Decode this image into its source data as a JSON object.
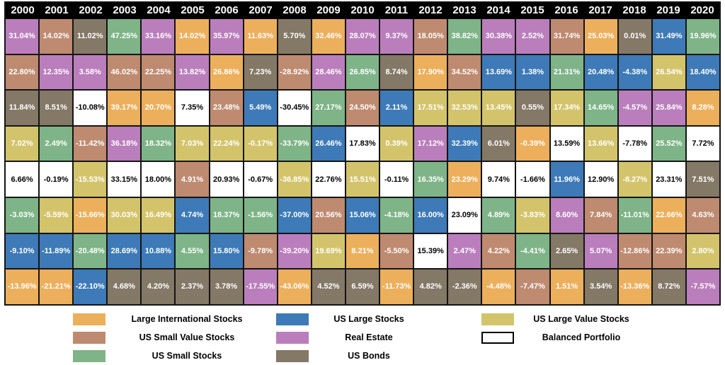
{
  "chart_data": {
    "type": "table",
    "years": [
      "2000",
      "2001",
      "2002",
      "2003",
      "2004",
      "2005",
      "2006",
      "2007",
      "2008",
      "2009",
      "2010",
      "2011",
      "2012",
      "2013",
      "2014",
      "2015",
      "2016",
      "2017",
      "2018",
      "2019",
      "2020"
    ],
    "asset_classes": {
      "LIS": {
        "label": "Large International Stocks",
        "color": "#ECAF5C",
        "text_color": "#FFFFFF"
      },
      "USV": {
        "label": "US Small Value Stocks",
        "color": "#BE8A70",
        "text_color": "#FFFFFF"
      },
      "USS": {
        "label": "US Small Stocks",
        "color": "#7EB487",
        "text_color": "#FFFFFF"
      },
      "UL": {
        "label": "US Large Stocks",
        "color": "#3D7AB7",
        "text_color": "#FFFFFF"
      },
      "RE": {
        "label": "Real Estate",
        "color": "#BA7EBC",
        "text_color": "#FFFFFF"
      },
      "UB": {
        "label": "US Bonds",
        "color": "#847866",
        "text_color": "#FFFFFF"
      },
      "ULV": {
        "label": "US Large Value Stocks",
        "color": "#D3C46C",
        "text_color": "#FFFFFF"
      },
      "BP": {
        "label": "Balanced Portfolio",
        "color": "#FFFFFF",
        "text_color": "#000000"
      }
    },
    "legend_columns": [
      [
        "LIS",
        "USV",
        "USS"
      ],
      [
        "UL",
        "RE",
        "UB"
      ],
      [
        "ULV",
        "BP"
      ]
    ],
    "rows": [
      [
        [
          "31.04%",
          "RE"
        ],
        [
          "14.02%",
          "USV"
        ],
        [
          "11.02%",
          "UB"
        ],
        [
          "47.25%",
          "USS"
        ],
        [
          "33.16%",
          "RE"
        ],
        [
          "14.02%",
          "LIS"
        ],
        [
          "35.97%",
          "RE"
        ],
        [
          "11.63%",
          "LIS"
        ],
        [
          "5.70%",
          "UB"
        ],
        [
          "32.46%",
          "LIS"
        ],
        [
          "28.07%",
          "RE"
        ],
        [
          "9.37%",
          "RE"
        ],
        [
          "18.05%",
          "USV"
        ],
        [
          "38.82%",
          "USS"
        ],
        [
          "30.38%",
          "RE"
        ],
        [
          "2.52%",
          "RE"
        ],
        [
          "31.74%",
          "USV"
        ],
        [
          "25.03%",
          "LIS"
        ],
        [
          "0.01%",
          "UB"
        ],
        [
          "31.49%",
          "UL"
        ],
        [
          "19.96%",
          "USS"
        ]
      ],
      [
        [
          "22.80%",
          "USV"
        ],
        [
          "12.35%",
          "RE"
        ],
        [
          "3.58%",
          "RE"
        ],
        [
          "46.02%",
          "USV"
        ],
        [
          "22.25%",
          "USV"
        ],
        [
          "13.82%",
          "RE"
        ],
        [
          "26.86%",
          "LIS"
        ],
        [
          "7.23%",
          "UB"
        ],
        [
          "-28.92%",
          "USV"
        ],
        [
          "28.46%",
          "RE"
        ],
        [
          "26.85%",
          "USS"
        ],
        [
          "8.74%",
          "UB"
        ],
        [
          "17.90%",
          "LIS"
        ],
        [
          "34.52%",
          "USV"
        ],
        [
          "13.69%",
          "UL"
        ],
        [
          "1.38%",
          "UL"
        ],
        [
          "21.31%",
          "USS"
        ],
        [
          "20.48%",
          "UL"
        ],
        [
          "-4.38%",
          "UL"
        ],
        [
          "26.54%",
          "ULV"
        ],
        [
          "18.40%",
          "UL"
        ]
      ],
      [
        [
          "11.84%",
          "UB"
        ],
        [
          "8.51%",
          "UB"
        ],
        [
          "-10.08%",
          "BP"
        ],
        [
          "39.17%",
          "LIS"
        ],
        [
          "20.70%",
          "LIS"
        ],
        [
          "7.35%",
          "BP"
        ],
        [
          "23.48%",
          "USV"
        ],
        [
          "5.49%",
          "UL"
        ],
        [
          "-30.45%",
          "BP"
        ],
        [
          "27.17%",
          "USS"
        ],
        [
          "24.50%",
          "USV"
        ],
        [
          "2.11%",
          "UL"
        ],
        [
          "17.51%",
          "ULV"
        ],
        [
          "32.53%",
          "ULV"
        ],
        [
          "13.45%",
          "ULV"
        ],
        [
          "0.55%",
          "UB"
        ],
        [
          "17.34%",
          "ULV"
        ],
        [
          "14.65%",
          "USS"
        ],
        [
          "-4.57%",
          "RE"
        ],
        [
          "25.84%",
          "RE"
        ],
        [
          "8.28%",
          "LIS"
        ]
      ],
      [
        [
          "7.02%",
          "ULV"
        ],
        [
          "2.49%",
          "USS"
        ],
        [
          "-11.42%",
          "USV"
        ],
        [
          "36.18%",
          "RE"
        ],
        [
          "18.32%",
          "USS"
        ],
        [
          "7.03%",
          "ULV"
        ],
        [
          "22.24%",
          "ULV"
        ],
        [
          "-0.17%",
          "ULV"
        ],
        [
          "-33.79%",
          "USS"
        ],
        [
          "26.46%",
          "UL"
        ],
        [
          "17.83%",
          "BP"
        ],
        [
          "0.39%",
          "ULV"
        ],
        [
          "17.12%",
          "RE"
        ],
        [
          "32.39%",
          "UL"
        ],
        [
          "6.01%",
          "UB"
        ],
        [
          "-0.39%",
          "LIS"
        ],
        [
          "13.59%",
          "BP"
        ],
        [
          "13.66%",
          "ULV"
        ],
        [
          "-7.78%",
          "BP"
        ],
        [
          "25.52%",
          "USS"
        ],
        [
          "7.72%",
          "BP"
        ]
      ],
      [
        [
          "6.66%",
          "BP"
        ],
        [
          "-0.19%",
          "BP"
        ],
        [
          "-15.53%",
          "ULV"
        ],
        [
          "33.15%",
          "BP"
        ],
        [
          "18.00%",
          "BP"
        ],
        [
          "4.91%",
          "USV"
        ],
        [
          "20.93%",
          "BP"
        ],
        [
          "-0.67%",
          "BP"
        ],
        [
          "-36.85%",
          "ULV"
        ],
        [
          "22.76%",
          "BP"
        ],
        [
          "15.51%",
          "ULV"
        ],
        [
          "-0.11%",
          "BP"
        ],
        [
          "16.35%",
          "USS"
        ],
        [
          "23.29%",
          "LIS"
        ],
        [
          "9.74%",
          "BP"
        ],
        [
          "-1.66%",
          "BP"
        ],
        [
          "11.96%",
          "UL"
        ],
        [
          "12.90%",
          "BP"
        ],
        [
          "-8.27%",
          "ULV"
        ],
        [
          "23.31%",
          "BP"
        ],
        [
          "7.51%",
          "UB"
        ]
      ],
      [
        [
          "-3.03%",
          "USS"
        ],
        [
          "-5.59%",
          "ULV"
        ],
        [
          "-15.66%",
          "LIS"
        ],
        [
          "30.03%",
          "ULV"
        ],
        [
          "16.49%",
          "ULV"
        ],
        [
          "4.74%",
          "UL"
        ],
        [
          "18.37%",
          "USS"
        ],
        [
          "-1.56%",
          "USS"
        ],
        [
          "-37.00%",
          "UL"
        ],
        [
          "20.56%",
          "USV"
        ],
        [
          "15.06%",
          "UL"
        ],
        [
          "-4.18%",
          "USS"
        ],
        [
          "16.00%",
          "UL"
        ],
        [
          "23.09%",
          "BP"
        ],
        [
          "4.89%",
          "USS"
        ],
        [
          "-3.83%",
          "ULV"
        ],
        [
          "8.60%",
          "RE"
        ],
        [
          "7.84%",
          "USV"
        ],
        [
          "-11.01%",
          "USS"
        ],
        [
          "22.66%",
          "LIS"
        ],
        [
          "4.63%",
          "USV"
        ]
      ],
      [
        [
          "-9.10%",
          "UL"
        ],
        [
          "-11.89%",
          "UL"
        ],
        [
          "-20.48%",
          "USS"
        ],
        [
          "28.69%",
          "UL"
        ],
        [
          "10.88%",
          "UL"
        ],
        [
          "4.55%",
          "USS"
        ],
        [
          "15.80%",
          "UL"
        ],
        [
          "-9.78%",
          "USV"
        ],
        [
          "-39.20%",
          "RE"
        ],
        [
          "19.69%",
          "ULV"
        ],
        [
          "8.21%",
          "LIS"
        ],
        [
          "-5.50%",
          "USV"
        ],
        [
          "15.39%",
          "BP"
        ],
        [
          "2.47%",
          "RE"
        ],
        [
          "4.22%",
          "USV"
        ],
        [
          "-4.41%",
          "USS"
        ],
        [
          "2.65%",
          "UB"
        ],
        [
          "5.07%",
          "RE"
        ],
        [
          "-12.86%",
          "USV"
        ],
        [
          "22.39%",
          "USV"
        ],
        [
          "2.80%",
          "ULV"
        ]
      ],
      [
        [
          "-13.96%",
          "LIS"
        ],
        [
          "-21.21%",
          "LIS"
        ],
        [
          "-22.10%",
          "UL"
        ],
        [
          "4.68%",
          "UB"
        ],
        [
          "4.20%",
          "UB"
        ],
        [
          "2.37%",
          "UB"
        ],
        [
          "3.78%",
          "UB"
        ],
        [
          "-17.55%",
          "RE"
        ],
        [
          "-43.06%",
          "LIS"
        ],
        [
          "4.52%",
          "UB"
        ],
        [
          "6.59%",
          "UB"
        ],
        [
          "-11.73%",
          "LIS"
        ],
        [
          "4.82%",
          "UB"
        ],
        [
          "-2.36%",
          "UB"
        ],
        [
          "-4.48%",
          "LIS"
        ],
        [
          "-7.47%",
          "USV"
        ],
        [
          "1.51%",
          "LIS"
        ],
        [
          "3.54%",
          "UB"
        ],
        [
          "-13.36%",
          "LIS"
        ],
        [
          "8.72%",
          "UB"
        ],
        [
          "-7.57%",
          "RE"
        ]
      ]
    ],
    "layout": {
      "grid_on": true,
      "legend_position": "bottom",
      "header_bg": "#000000",
      "header_text": "#FFFFFF",
      "border_color": "#151515"
    }
  }
}
